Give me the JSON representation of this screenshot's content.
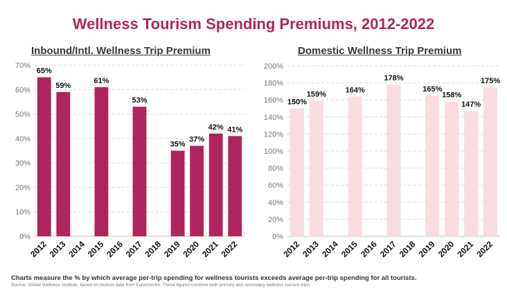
{
  "title": "Wellness Tourism Spending Premiums, 2012-2022",
  "colors": {
    "title": "#b0245e",
    "inbound_bar": "#b0245e",
    "domestic_bar": "#f8dde0",
    "grid": "#d9d9d9"
  },
  "footnote": "Charts measure the % by which average per-trip spending for wellness tourists exceeds average per-trip spending for all tourists.",
  "source": "Source: Global Wellness Institute, based on tourism data from Euromonitor. These figures combine both primary and secondary wellness tourism trips.",
  "chart_data": [
    {
      "type": "bar",
      "title": "Inbound/Intl. Wellness Trip Premium",
      "categories": [
        "2012",
        "2013",
        "2014",
        "2015",
        "2016",
        "2017",
        "2018",
        "2019",
        "2020",
        "2021",
        "2022"
      ],
      "values": [
        65,
        59,
        null,
        61,
        null,
        53,
        null,
        35,
        37,
        42,
        41
      ],
      "data_labels": [
        "65%",
        "59%",
        "",
        "61%",
        "",
        "53%",
        "",
        "35%",
        "37%",
        "42%",
        "41%"
      ],
      "ylim": [
        0,
        70
      ],
      "yticks": [
        "0%",
        "10%",
        "20%",
        "30%",
        "40%",
        "50%",
        "60%",
        "70%"
      ],
      "grid": true,
      "color": "#b0245e"
    },
    {
      "type": "bar",
      "title": "Domestic Wellness Trip Premium",
      "categories": [
        "2012",
        "2013",
        "2014",
        "2015",
        "2016",
        "2017",
        "2018",
        "2019",
        "2020",
        "2021",
        "2022"
      ],
      "values": [
        150,
        159,
        null,
        164,
        null,
        178,
        null,
        165,
        158,
        147,
        175
      ],
      "data_labels": [
        "150%",
        "159%",
        "",
        "164%",
        "",
        "178%",
        "",
        "165%",
        "158%",
        "147%",
        "175%"
      ],
      "ylim": [
        0,
        200
      ],
      "yticks": [
        "0%",
        "20%",
        "40%",
        "60%",
        "80%",
        "100%",
        "120%",
        "140%",
        "160%",
        "180%",
        "200%"
      ],
      "grid": true,
      "color": "#f8dde0"
    }
  ]
}
